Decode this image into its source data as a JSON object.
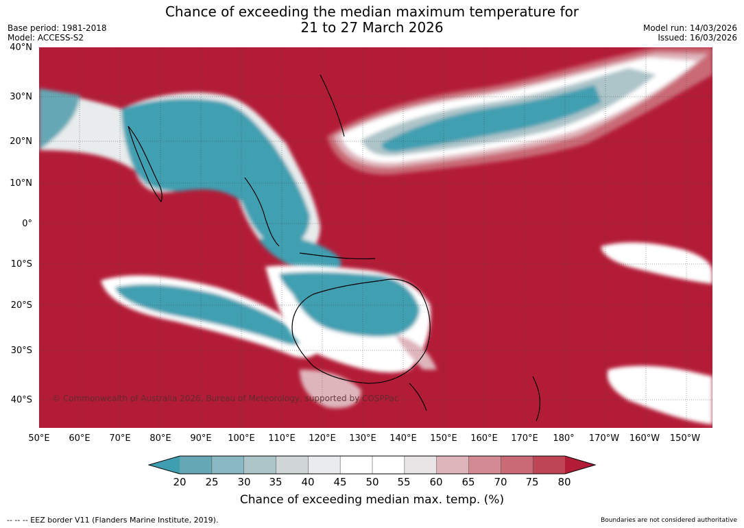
{
  "header": {
    "title_line1": "Chance of exceeding the median maximum temperature for",
    "title_line2": "21 to 27 March 2026",
    "base_period": "Base period: 1981-2018",
    "model": "Model: ACCESS-S2",
    "model_run": "Model run: 14/03/2026",
    "issued": "Issued: 16/03/2026"
  },
  "map": {
    "lat_labels": [
      "40°N",
      "30°N",
      "20°N",
      "10°N",
      "0°",
      "10°S",
      "20°S",
      "30°S",
      "40°S"
    ],
    "lon_labels": [
      "50°E",
      "60°E",
      "70°E",
      "80°E",
      "90°E",
      "100°E",
      "110°E",
      "120°E",
      "130°E",
      "140°E",
      "150°E",
      "160°E",
      "170°E",
      "180°",
      "170°W",
      "160°W",
      "150°W"
    ],
    "copyright": "© Commonwealth of Australia 2026, Bureau of Meteorology, supported by COSPPac"
  },
  "legend": {
    "ticks": [
      "20",
      "25",
      "30",
      "35",
      "40",
      "45",
      "50",
      "55",
      "60",
      "65",
      "70",
      "75",
      "80"
    ],
    "colors": [
      "#3f9fb1",
      "#65a7b4",
      "#8ab8c3",
      "#adc4c9",
      "#d0d6d8",
      "#e8eced",
      "#ffffff",
      "#ffffff",
      "#e9e5e6",
      "#dfb5bc",
      "#d48a95",
      "#c96a76",
      "#be4556",
      "#b31c37"
    ],
    "label": "Chance of exceeding median max. temp. (%)"
  },
  "footer": {
    "eez_note": "--  --  -- EEZ border V11 (Flanders Marine Institute, 2019).",
    "disclaimer": "Boundaries are not considered authoritative"
  }
}
